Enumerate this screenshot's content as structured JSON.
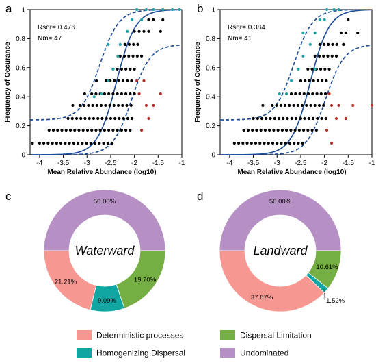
{
  "colors": {
    "fit_line": "#1f4e96",
    "point_above": "#26a3a6",
    "point_within": "#000000",
    "point_below": "#b2312c",
    "deterministic": "#f79791",
    "homogenizing": "#12a6a3",
    "dispersal": "#75ae42",
    "undominated": "#b68fc4"
  },
  "chart_data": [
    {
      "panel": "a",
      "type": "scatter",
      "xlabel": "Mean Relative Abundance (log10)",
      "ylabel": "Frequency of Occurance",
      "xlim": [
        -4.2,
        -1
      ],
      "ylim": [
        0,
        1
      ],
      "xticks": [
        "-4",
        "-3.5",
        "-3",
        "-2.5",
        "-2",
        "-1.5",
        "-1"
      ],
      "yticks": [
        "0",
        "0.2",
        "0.4",
        "0.6",
        "0.8",
        "1"
      ],
      "annotations": [
        "Rsqr= 0.476",
        "Nm= 47"
      ],
      "fit": {
        "mid": -2.38,
        "k": 5.0,
        "upper_base": 0.24,
        "lower_top": 0.76
      },
      "points": {
        "above": [
          [
            -2.7,
            0.42
          ],
          [
            -2.55,
            0.51
          ],
          [
            -2.45,
            0.59
          ],
          [
            -2.35,
            0.68
          ],
          [
            -2.55,
            0.76
          ],
          [
            -2.3,
            0.76
          ],
          [
            -2.15,
            0.85
          ],
          [
            -2.05,
            0.93
          ],
          [
            -1.95,
            1.0
          ],
          [
            -1.75,
            1.0
          ],
          [
            -1.6,
            1.0
          ],
          [
            -1.4,
            1.0
          ],
          [
            -1.2,
            1.0
          ],
          [
            -1.05,
            1.0
          ],
          [
            -1.85,
            0.93
          ],
          [
            -2.85,
            0.4
          ]
        ],
        "below": [
          [
            -1.95,
            0.51
          ],
          [
            -1.8,
            0.51
          ],
          [
            -1.9,
            0.42
          ],
          [
            -1.75,
            0.34
          ],
          [
            -1.6,
            0.34
          ],
          [
            -1.45,
            0.42
          ],
          [
            -1.7,
            0.25
          ],
          [
            -1.85,
            0.17
          ]
        ],
        "within_rows": [
          {
            "y": 0.08,
            "x_from": -4.0,
            "x_to": -2.4,
            "step": 0.09
          },
          {
            "y": 0.17,
            "x_from": -3.8,
            "x_to": -2.05,
            "step": 0.09
          },
          {
            "y": 0.25,
            "x_from": -3.4,
            "x_to": -2.0,
            "step": 0.09
          },
          {
            "y": 0.34,
            "x_from": -3.15,
            "x_to": -2.0,
            "step": 0.09
          },
          {
            "y": 0.42,
            "x_from": -2.9,
            "x_to": -2.0,
            "step": 0.09
          },
          {
            "y": 0.51,
            "x_from": -2.6,
            "x_to": -2.0,
            "step": 0.09
          },
          {
            "y": 0.59,
            "x_from": -2.45,
            "x_to": -1.95,
            "step": 0.09
          },
          {
            "y": 0.68,
            "x_from": -2.3,
            "x_to": -1.85,
            "step": 0.09
          },
          {
            "y": 0.76,
            "x_from": -2.2,
            "x_to": -1.85,
            "step": 0.09
          },
          {
            "y": 0.85,
            "x_from": -2.0,
            "x_to": -1.7,
            "step": 0.1
          },
          {
            "y": 0.93,
            "x_from": -1.7,
            "x_to": -1.6,
            "step": 0.1
          }
        ],
        "within_extra": [
          [
            -4.15,
            0.08
          ],
          [
            -3.3,
            0.34
          ],
          [
            -3.05,
            0.42
          ],
          [
            -2.8,
            0.51
          ],
          [
            -1.45,
            0.85
          ],
          [
            -1.4,
            0.93
          ]
        ]
      }
    },
    {
      "panel": "b",
      "type": "scatter",
      "xlabel": "Mean Relative Abundance (log10)",
      "ylabel": "Frequency of Occurance",
      "xlim": [
        -4.2,
        -1
      ],
      "ylim": [
        0,
        1
      ],
      "xticks": [
        "-4",
        "-3.5",
        "-3",
        "-2.5",
        "-2",
        "-1.5",
        "-1"
      ],
      "yticks": [
        "0",
        "0.2",
        "0.4",
        "0.6",
        "0.8",
        "1"
      ],
      "annotations": [
        "Rsqr= 0.384",
        "Nm= 41"
      ],
      "fit": {
        "mid": -2.3,
        "k": 5.0,
        "upper_base": 0.24,
        "lower_top": 0.76
      },
      "points": {
        "above": [
          [
            -2.95,
            0.42
          ],
          [
            -2.8,
            0.42
          ],
          [
            -2.7,
            0.51
          ],
          [
            -2.55,
            0.59
          ],
          [
            -2.45,
            0.68
          ],
          [
            -2.3,
            0.76
          ],
          [
            -2.45,
            0.84
          ],
          [
            -2.2,
            0.84
          ],
          [
            -2.1,
            0.93
          ],
          [
            -1.95,
            1.0
          ],
          [
            -1.8,
            1.0
          ],
          [
            -1.7,
            1.0
          ],
          [
            -2.0,
            0.93
          ],
          [
            -2.2,
            0.59
          ]
        ],
        "below": [
          [
            -1.9,
            0.42
          ],
          [
            -1.85,
            0.34
          ],
          [
            -1.7,
            0.34
          ],
          [
            -1.75,
            0.25
          ],
          [
            -1.55,
            0.25
          ],
          [
            -1.95,
            0.17
          ],
          [
            -1.85,
            0.08
          ],
          [
            -1.0,
            0.34
          ],
          [
            -1.4,
            0.34
          ]
        ],
        "within_rows": [
          {
            "y": 0.08,
            "x_from": -3.9,
            "x_to": -2.4,
            "step": 0.09
          },
          {
            "y": 0.17,
            "x_from": -3.7,
            "x_to": -2.1,
            "step": 0.09
          },
          {
            "y": 0.25,
            "x_from": -3.5,
            "x_to": -1.95,
            "step": 0.09
          },
          {
            "y": 0.34,
            "x_from": -3.1,
            "x_to": -1.95,
            "step": 0.09
          },
          {
            "y": 0.42,
            "x_from": -2.7,
            "x_to": -1.95,
            "step": 0.09
          },
          {
            "y": 0.51,
            "x_from": -2.5,
            "x_to": -1.9,
            "step": 0.09
          },
          {
            "y": 0.59,
            "x_from": -2.35,
            "x_to": -1.85,
            "step": 0.09
          },
          {
            "y": 0.68,
            "x_from": -2.2,
            "x_to": -1.75,
            "step": 0.09
          },
          {
            "y": 0.76,
            "x_from": -2.1,
            "x_to": -1.7,
            "step": 0.09
          },
          {
            "y": 0.84,
            "x_from": -1.65,
            "x_to": -1.5,
            "step": 0.1
          }
        ],
        "within_extra": [
          [
            -1.3,
            0.84
          ],
          [
            -1.6,
            0.76
          ],
          [
            -1.5,
            0.93
          ],
          [
            -2.5,
            0.25
          ],
          [
            -3.3,
            0.34
          ]
        ]
      }
    },
    {
      "panel": "c",
      "type": "pie",
      "center_label": "Waterward",
      "slices": [
        {
          "category": "Undominated",
          "value": 50.0,
          "label": "50.00%"
        },
        {
          "category": "Dispersal Limitation",
          "value": 19.7,
          "label": "19.70%"
        },
        {
          "category": "Homogenizing Dispersal",
          "value": 9.09,
          "label": "9.09%"
        },
        {
          "category": "Deterministic processes",
          "value": 21.21,
          "label": "21.21%"
        }
      ]
    },
    {
      "panel": "d",
      "type": "pie",
      "center_label": "Landward",
      "slices": [
        {
          "category": "Undominated",
          "value": 50.0,
          "label": "50.00%"
        },
        {
          "category": "Dispersal Limitation",
          "value": 10.61,
          "label": "10.61%"
        },
        {
          "category": "Homogenizing Dispersal",
          "value": 1.52,
          "label": "1.52%"
        },
        {
          "category": "Deterministic processes",
          "value": 37.87,
          "label": "37.87%"
        }
      ]
    }
  ],
  "legend": [
    {
      "label": "Deterministic processes",
      "color": "#f79791"
    },
    {
      "label": "Dispersal Limitation",
      "color": "#75ae42"
    },
    {
      "label": "Homogenizing Dispersal",
      "color": "#12a6a3"
    },
    {
      "label": "Undominated",
      "color": "#b68fc4"
    }
  ]
}
